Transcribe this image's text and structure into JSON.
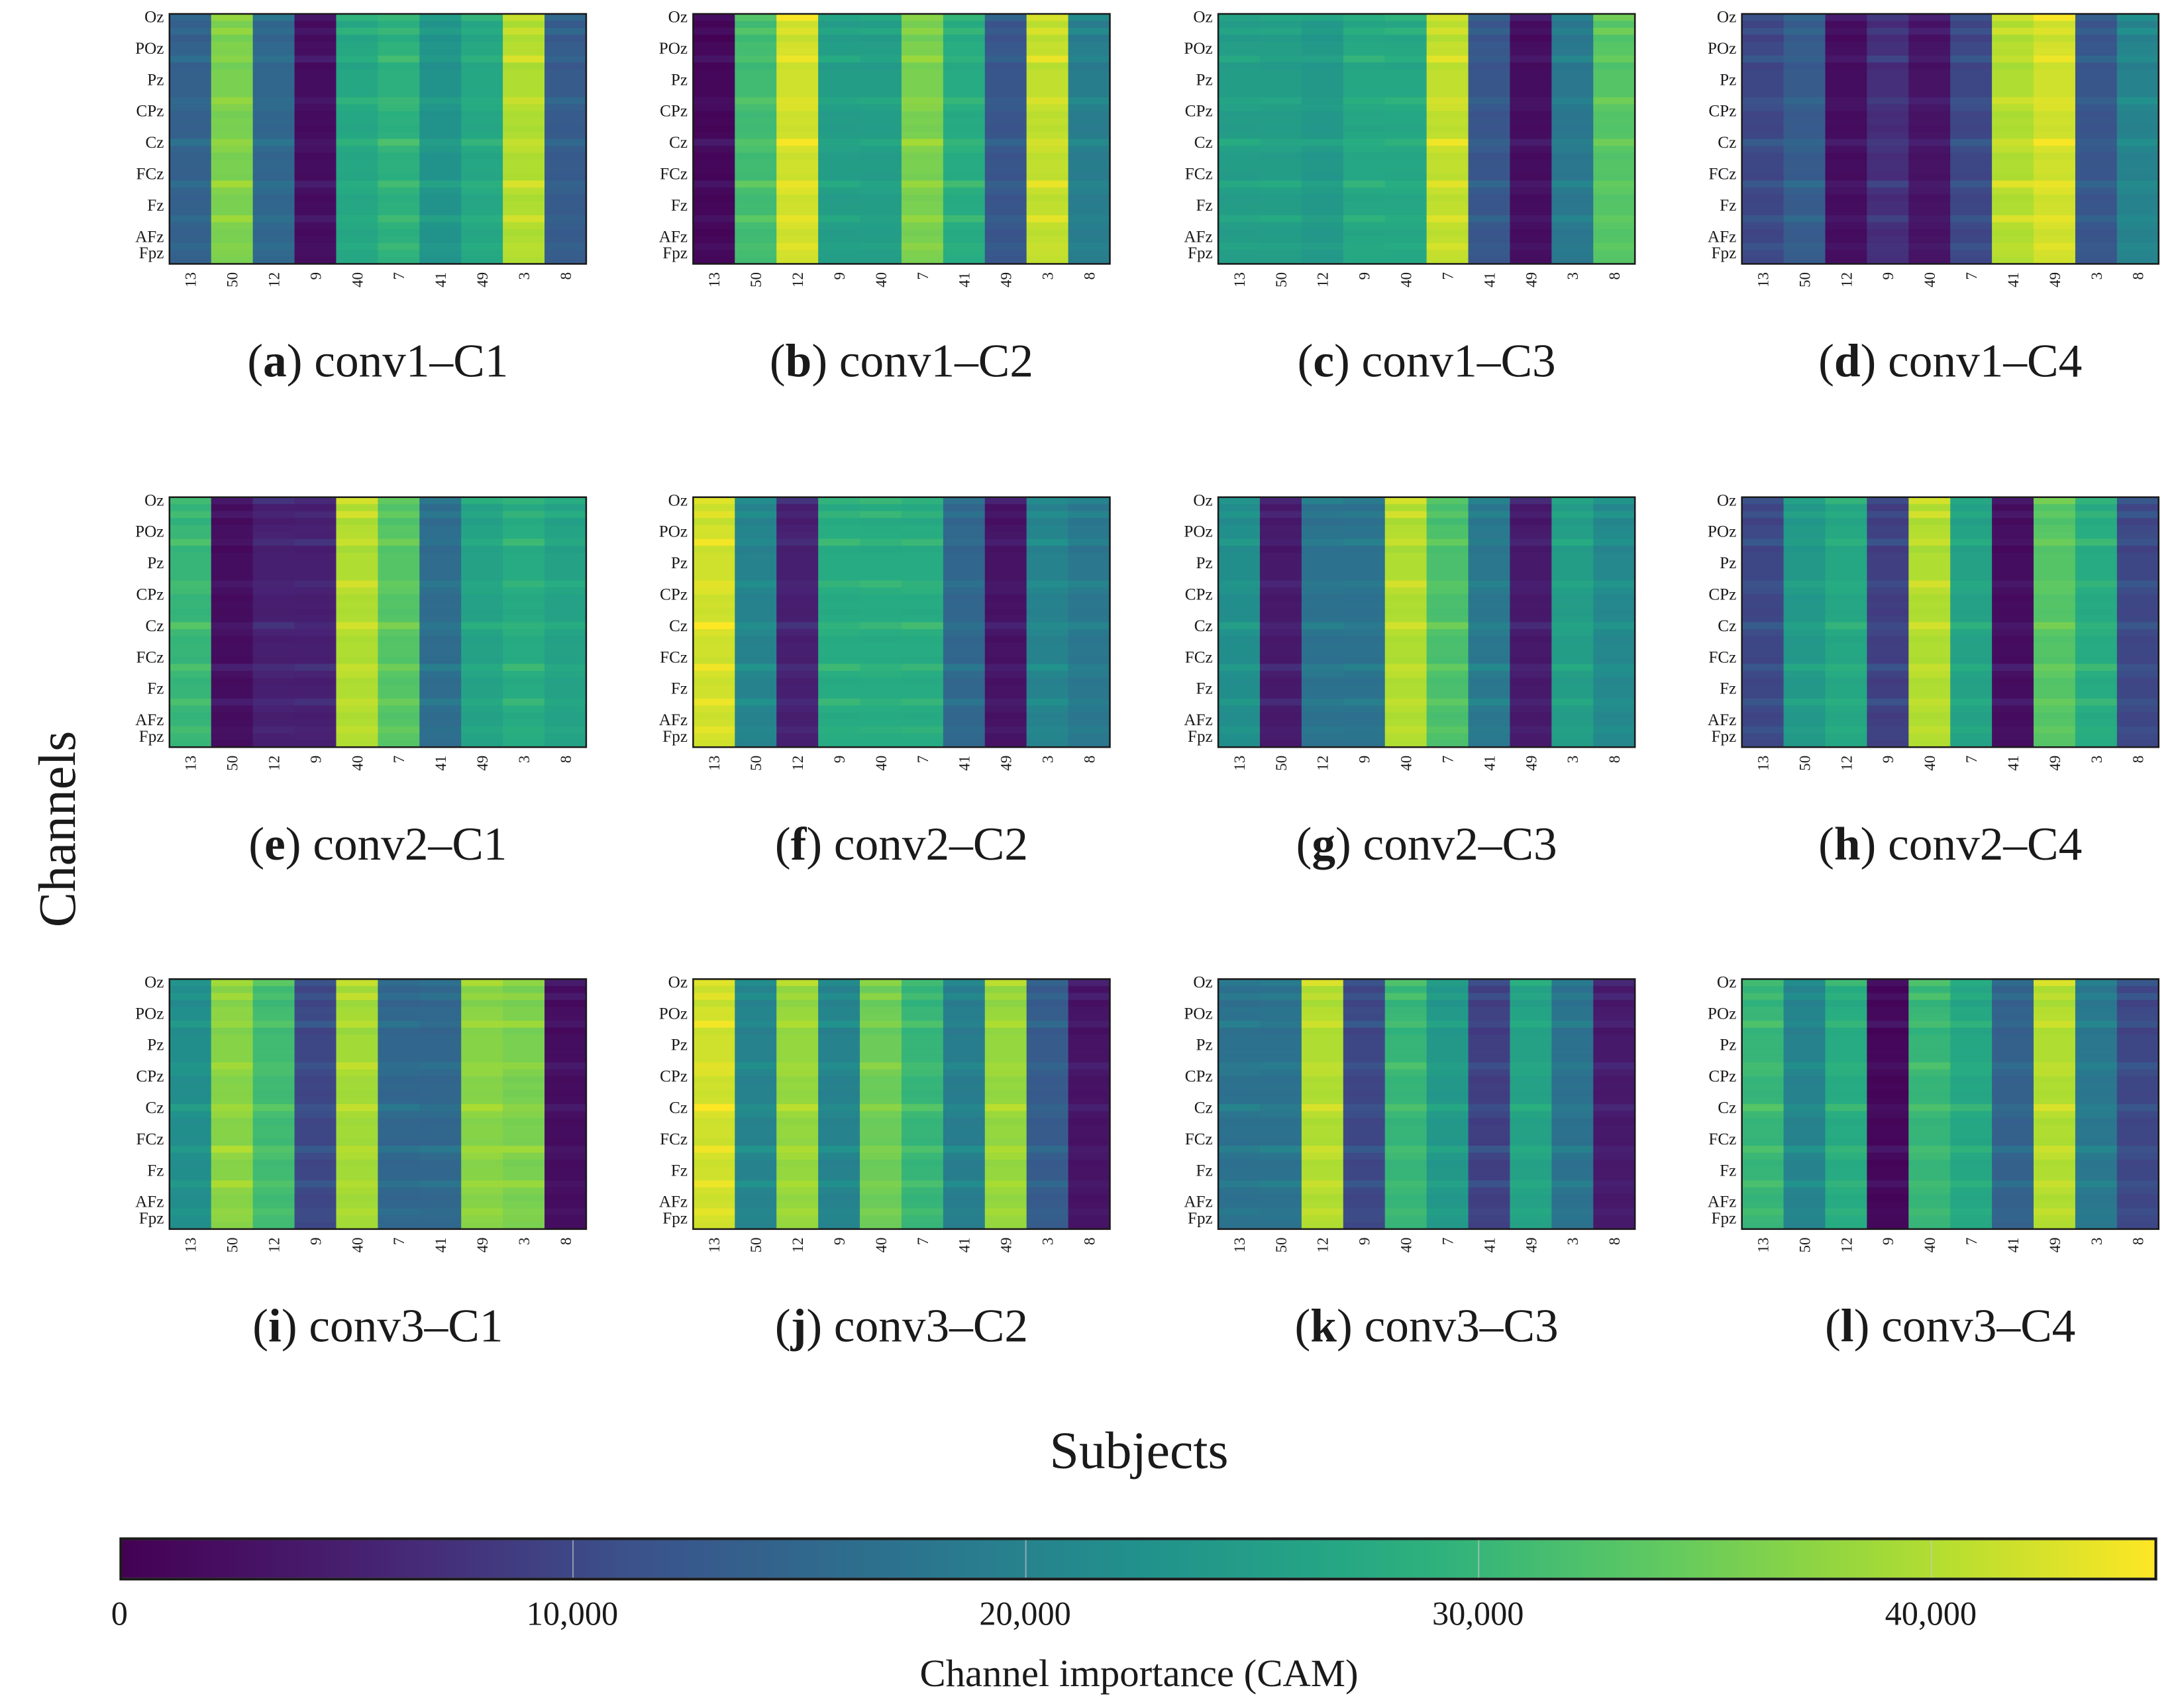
{
  "chart_data": {
    "type": "heatmap",
    "xlabel": "Subjects",
    "ylabel": "Channels",
    "channels": [
      "Oz",
      "POz",
      "Pz",
      "CPz",
      "Cz",
      "FCz",
      "Fz",
      "AFz",
      "Fpz"
    ],
    "subjects": [
      "13",
      "50",
      "12",
      "9",
      "40",
      "7",
      "41",
      "49",
      "3",
      "8"
    ],
    "colorbar": {
      "title": "Channel importance (CAM)",
      "colormap": "viridis",
      "range": [
        0,
        45000
      ],
      "ticks": [
        "0",
        "10,000",
        "20,000",
        "30,000",
        "40,000"
      ],
      "tick_values": [
        0,
        10000,
        20000,
        30000,
        40000
      ]
    },
    "row_modulation": [
      0.3,
      -0.05,
      0.25,
      -0.1,
      0.05,
      0.05,
      0.3,
      -0.1,
      0,
      0,
      0,
      0,
      0.25,
      0.1,
      -0.05,
      0,
      -0.05,
      0,
      0.35,
      0.1,
      -0.05,
      0,
      0,
      -0.05,
      0.35,
      0.1,
      -0.05,
      0,
      0,
      0.3,
      0.05,
      -0.05,
      0,
      0.15,
      0.05,
      0
    ],
    "panels": [
      {
        "letter": "a",
        "title": "conv1–C1",
        "values": [
          14000,
          36000,
          15000,
          2000,
          27000,
          29000,
          23000,
          27000,
          40000,
          13000
        ]
      },
      {
        "letter": "b",
        "title": "conv1–C2",
        "values": [
          1000,
          31000,
          42000,
          25000,
          25000,
          36000,
          28000,
          12000,
          41000,
          19000
        ]
      },
      {
        "letter": "c",
        "title": "conv1–C3",
        "values": [
          25000,
          25000,
          24000,
          27000,
          27000,
          41000,
          12000,
          2000,
          18000,
          33000
        ]
      },
      {
        "letter": "d",
        "title": "conv1–C4",
        "values": [
          10000,
          13000,
          2000,
          7000,
          3000,
          10000,
          40000,
          42000,
          12000,
          20000
        ]
      },
      {
        "letter": "e",
        "title": "conv2–C1",
        "values": [
          30000,
          2000,
          5000,
          5000,
          40000,
          33000,
          16000,
          26000,
          28000,
          26000
        ]
      },
      {
        "letter": "f",
        "title": "conv2–C2",
        "values": [
          42000,
          20000,
          5000,
          28000,
          28000,
          28000,
          15000,
          3000,
          20000,
          18000
        ]
      },
      {
        "letter": "g",
        "title": "conv2–C3",
        "values": [
          22000,
          4000,
          17000,
          17000,
          40000,
          32000,
          18000,
          4000,
          25000,
          21000
        ]
      },
      {
        "letter": "h",
        "title": "conv2–C4",
        "values": [
          10000,
          24000,
          27000,
          9000,
          40000,
          26000,
          2000,
          33000,
          28000,
          10000
        ]
      },
      {
        "letter": "i",
        "title": "conv3–C1",
        "values": [
          22000,
          37000,
          31000,
          10000,
          39000,
          15000,
          15000,
          37000,
          36000,
          2000
        ]
      },
      {
        "letter": "j",
        "title": "conv3–C2",
        "values": [
          42000,
          20000,
          38000,
          20000,
          35000,
          30000,
          19000,
          38000,
          13000,
          3000
        ]
      },
      {
        "letter": "k",
        "title": "conv3–C3",
        "values": [
          17000,
          17000,
          40000,
          10000,
          30000,
          24000,
          9000,
          26000,
          17000,
          4000
        ]
      },
      {
        "letter": "l",
        "title": "conv3–C4",
        "values": [
          30000,
          20000,
          28000,
          1000,
          30000,
          27000,
          14000,
          40000,
          18000,
          10000
        ]
      }
    ]
  }
}
